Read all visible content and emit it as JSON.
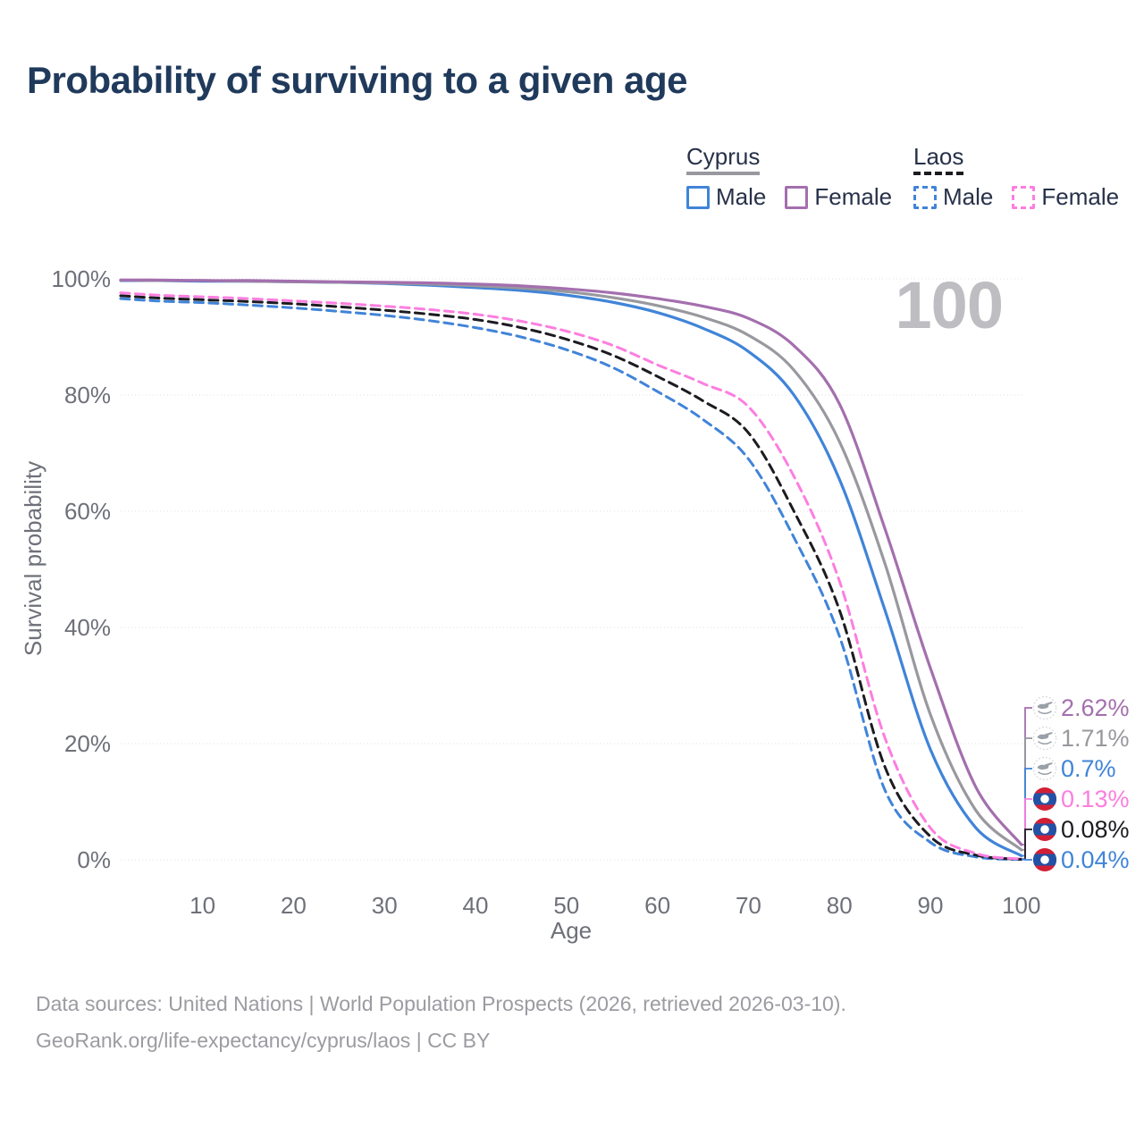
{
  "title": "Probability of surviving to a given age",
  "watermark_age": "100",
  "legend": {
    "groups": [
      {
        "label": "Cyprus",
        "line_style": "solid",
        "underline_color": "#98989e",
        "items": [
          {
            "label": "Male",
            "color": "#4084d8",
            "dashed": false
          },
          {
            "label": "Female",
            "color": "#a46fae",
            "dashed": false
          }
        ]
      },
      {
        "label": "Laos",
        "line_style": "dashed",
        "underline_color": "#1b1b20",
        "items": [
          {
            "label": "Male",
            "color": "#4084d8",
            "dashed": true
          },
          {
            "label": "Female",
            "color": "#fc7ee0",
            "dashed": true
          }
        ]
      }
    ]
  },
  "footer": {
    "line1": "Data sources: United Nations | World Population Prospects (2026, retrieved 2026-03-10).",
    "line2": "GeoRank.org/life-expectancy/cyprus/laos | CC BY"
  },
  "chart_data": {
    "type": "line",
    "title": "Probability of surviving to a given age",
    "xlabel": "Age",
    "ylabel": "Survival probability",
    "xlim": [
      1,
      100
    ],
    "ylim": [
      0,
      100
    ],
    "grid": true,
    "legend_position": "top-right",
    "x_ticks": [
      10,
      20,
      30,
      40,
      50,
      60,
      70,
      80,
      90,
      100
    ],
    "y_ticks": [
      {
        "value": 0,
        "label": "0%"
      },
      {
        "value": 20,
        "label": "20%"
      },
      {
        "value": 40,
        "label": "40%"
      },
      {
        "value": 60,
        "label": "60%"
      },
      {
        "value": 80,
        "label": "80%"
      },
      {
        "value": 100,
        "label": "100%"
      }
    ],
    "x": [
      1,
      5,
      10,
      15,
      20,
      25,
      30,
      35,
      40,
      45,
      50,
      55,
      60,
      65,
      70,
      75,
      80,
      85,
      90,
      95,
      100
    ],
    "series": [
      {
        "name": "Cyprus Female",
        "country": "Cyprus",
        "sex": "Female",
        "color": "#a46fae",
        "dashed": false,
        "end": {
          "text": "2.62%",
          "flag": "cyprus"
        },
        "values": [
          99.8,
          99.8,
          99.7,
          99.7,
          99.6,
          99.5,
          99.4,
          99.3,
          99.1,
          98.8,
          98.3,
          97.6,
          96.6,
          95.3,
          93.2,
          88.5,
          78.5,
          57.0,
          33.0,
          12.5,
          2.62
        ]
      },
      {
        "name": "Cyprus Both Sexes",
        "country": "Cyprus",
        "sex": "Both",
        "color": "#98989e",
        "dashed": false,
        "end": {
          "text": "1.71%",
          "flag": "cyprus"
        },
        "values": [
          99.8,
          99.7,
          99.7,
          99.6,
          99.5,
          99.4,
          99.3,
          99.1,
          98.8,
          98.4,
          97.8,
          96.8,
          95.4,
          93.4,
          90.3,
          84.3,
          72.0,
          51.0,
          25.0,
          8.5,
          1.71
        ]
      },
      {
        "name": "Cyprus Male",
        "country": "Cyprus",
        "sex": "Male",
        "color": "#4084d8",
        "dashed": false,
        "end": {
          "text": "0.7%",
          "flag": "cyprus"
        },
        "values": [
          99.7,
          99.7,
          99.6,
          99.6,
          99.5,
          99.4,
          99.2,
          98.9,
          98.5,
          98.0,
          97.2,
          96.0,
          94.2,
          91.5,
          87.5,
          80.0,
          65.5,
          43.0,
          19.0,
          5.5,
          0.7
        ]
      },
      {
        "name": "Laos Female",
        "country": "Laos",
        "sex": "Female",
        "color": "#fc7ee0",
        "dashed": true,
        "end": {
          "text": "0.13%",
          "flag": "laos"
        },
        "values": [
          97.6,
          97.2,
          96.9,
          96.6,
          96.2,
          95.8,
          95.3,
          94.7,
          93.9,
          92.7,
          91.0,
          88.6,
          85.2,
          82.0,
          78.0,
          66.0,
          48.0,
          21.0,
          5.5,
          1.1,
          0.13
        ]
      },
      {
        "name": "Laos Both Sexes",
        "country": "Laos",
        "sex": "Both",
        "color": "#1b1b20",
        "dashed": true,
        "end": {
          "text": "0.08%",
          "flag": "laos"
        },
        "values": [
          97.1,
          96.7,
          96.4,
          96.1,
          95.7,
          95.2,
          94.6,
          93.9,
          93.0,
          91.6,
          89.6,
          86.9,
          83.2,
          79.0,
          73.5,
          60.0,
          43.0,
          16.0,
          4.0,
          0.8,
          0.08
        ]
      },
      {
        "name": "Laos Male",
        "country": "Laos",
        "sex": "Male",
        "color": "#4084d8",
        "dashed": true,
        "end": {
          "text": "0.04%",
          "flag": "laos"
        },
        "values": [
          96.6,
          96.2,
          95.9,
          95.5,
          95.0,
          94.4,
          93.7,
          92.8,
          91.6,
          90.0,
          87.8,
          84.8,
          80.6,
          75.8,
          69.0,
          55.5,
          38.5,
          12.0,
          3.0,
          0.5,
          0.04
        ]
      }
    ]
  }
}
